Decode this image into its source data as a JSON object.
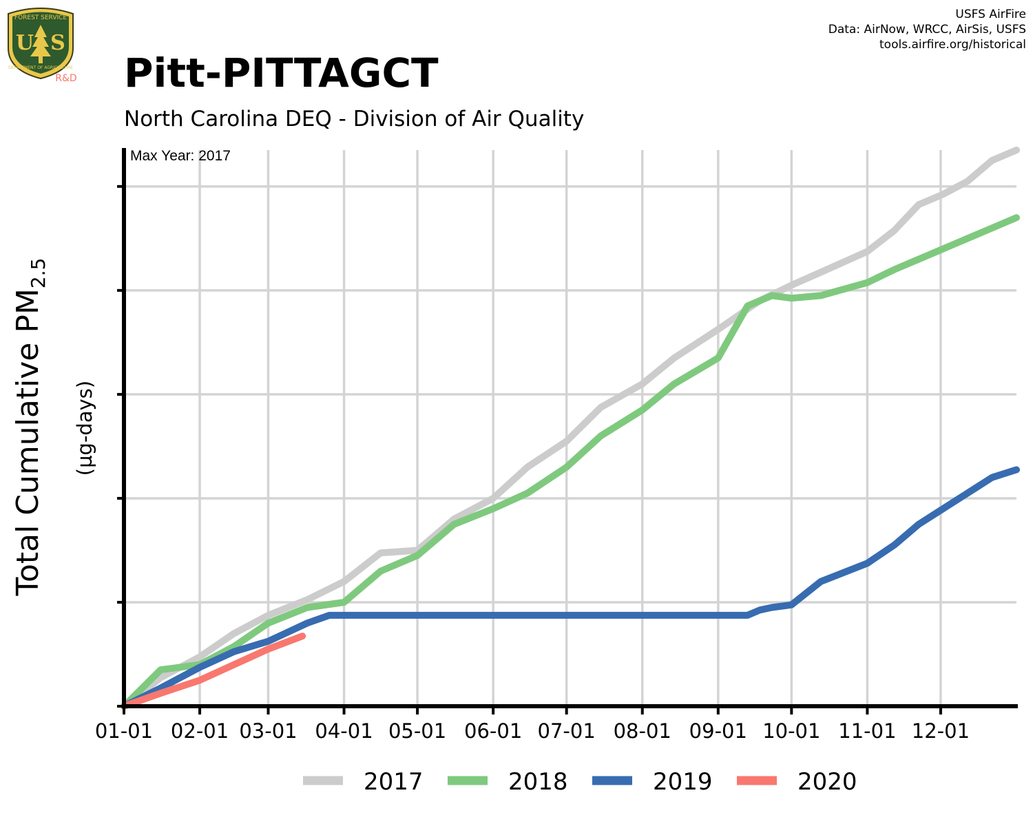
{
  "header": {
    "title": "Pitt-PITTAGCT",
    "subtitle": "North Carolina DEQ - Division of Air Quality",
    "credits": [
      "USFS AirFire",
      "Data: AirNow, WRCC, AirSis, USFS",
      "tools.airfire.org/historical"
    ],
    "logo_text": [
      "FOREST SERVICE",
      "U",
      "S",
      "DEPARTMENT OF AGRICULTURE",
      "R&D"
    ]
  },
  "chart_data": {
    "type": "line",
    "annotation": "Max Year: 2017",
    "ylabel_main": "Total Cumulative PM",
    "ylabel_sub": "2.5",
    "ylabel_units": "(µg-days)",
    "xlabel": "",
    "x_ticks": [
      "01-01",
      "02-01",
      "03-01",
      "04-01",
      "05-01",
      "06-01",
      "07-01",
      "08-01",
      "09-01",
      "10-01",
      "11-01",
      "12-01"
    ],
    "x_tick_days": [
      0,
      31,
      59,
      90,
      120,
      151,
      181,
      212,
      243,
      273,
      304,
      334
    ],
    "x_range": [
      0,
      365
    ],
    "y_range": [
      0,
      1070
    ],
    "y_gridlines": [
      0,
      200,
      400,
      600,
      800,
      1000
    ],
    "y_tick_labels_shown": false,
    "grid": true,
    "legend_position": "bottom",
    "series": [
      {
        "name": "2017",
        "color": "#cccccc",
        "x": [
          0,
          15,
          31,
          45,
          59,
          75,
          90,
          105,
          120,
          135,
          151,
          165,
          181,
          195,
          212,
          225,
          243,
          260,
          273,
          285,
          304,
          315,
          325,
          335,
          345,
          355,
          365
        ],
        "y": [
          0,
          55,
          95,
          140,
          175,
          205,
          240,
          295,
          300,
          360,
          400,
          460,
          510,
          575,
          620,
          670,
          725,
          780,
          810,
          835,
          875,
          915,
          965,
          985,
          1010,
          1050,
          1070
        ]
      },
      {
        "name": "2018",
        "color": "#7fc97f",
        "x": [
          0,
          15,
          31,
          45,
          59,
          75,
          90,
          105,
          120,
          135,
          151,
          165,
          181,
          195,
          212,
          225,
          243,
          255,
          265,
          273,
          285,
          304,
          315,
          325,
          335,
          345,
          355,
          365
        ],
        "y": [
          0,
          70,
          80,
          115,
          160,
          190,
          200,
          260,
          290,
          350,
          380,
          410,
          460,
          520,
          570,
          620,
          670,
          770,
          790,
          785,
          790,
          815,
          840,
          860,
          880,
          900,
          920,
          940
        ]
      },
      {
        "name": "2019",
        "color": "#386cb0",
        "x": [
          0,
          15,
          31,
          45,
          59,
          75,
          84,
          90,
          120,
          151,
          181,
          212,
          243,
          255,
          260,
          265,
          273,
          285,
          304,
          315,
          325,
          335,
          345,
          355,
          365
        ],
        "y": [
          0,
          35,
          75,
          105,
          125,
          160,
          175,
          175,
          175,
          175,
          175,
          175,
          175,
          175,
          185,
          190,
          195,
          240,
          275,
          310,
          350,
          380,
          410,
          440,
          455
        ]
      },
      {
        "name": "2020",
        "color": "#f8786f",
        "x": [
          0,
          15,
          31,
          45,
          59,
          73
        ],
        "y": [
          0,
          25,
          50,
          80,
          110,
          135
        ]
      }
    ]
  }
}
